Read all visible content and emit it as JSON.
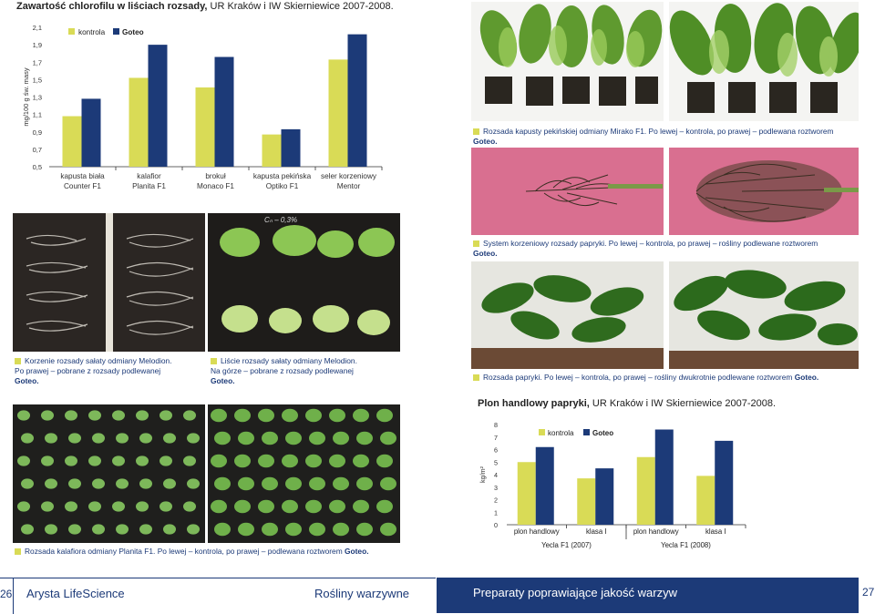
{
  "colors": {
    "kontrola": "#d9db56",
    "goteo": "#1c3a78",
    "accent_sq": "#d9db56",
    "footer_blue": "#1c3a78"
  },
  "chart1": {
    "title_bold": "Zawartość chlorofilu w liściach rozsady,",
    "title_rest": " UR Kraków i IW Skierniewice 2007-2008.",
    "chart_data": {
      "type": "bar",
      "ylabel": "mg/100 g św. masy",
      "ylim": [
        0.5,
        2.1
      ],
      "yticks": [
        "2,1",
        "1,9",
        "1,7",
        "1,5",
        "1,3",
        "1,1",
        "0,9",
        "0,7",
        "0,5"
      ],
      "ytick_values": [
        2.1,
        1.9,
        1.7,
        1.5,
        1.3,
        1.1,
        0.9,
        0.7,
        0.5
      ],
      "categories": [
        [
          "kapusta biała",
          "Counter F1"
        ],
        [
          "kalafior",
          "Planita F1"
        ],
        [
          "brokuł",
          "Monaco F1"
        ],
        [
          "kapusta pekińska",
          "Optiko F1"
        ],
        [
          "seler korzeniowy",
          "Mentor"
        ]
      ],
      "series": [
        {
          "name": "kontrola",
          "values": [
            1.08,
            1.52,
            1.41,
            0.87,
            1.73
          ]
        },
        {
          "name": "Goteo",
          "values": [
            1.28,
            1.9,
            1.76,
            0.93,
            2.02
          ]
        }
      ],
      "legend_position": "top-left"
    }
  },
  "chart2": {
    "title_bold": "Plon handlowy papryki,",
    "title_rest": " UR Kraków i IW Skierniewice 2007-2008.",
    "chart_data": {
      "type": "bar",
      "ylabel": "kg/m²",
      "ylim": [
        0,
        8
      ],
      "yticks": [
        "8",
        "7",
        "6",
        "5",
        "4",
        "3",
        "2",
        "1",
        "0"
      ],
      "ytick_values": [
        8,
        7,
        6,
        5,
        4,
        3,
        2,
        1,
        0
      ],
      "categories": [
        "plon handlowy",
        "klasa I",
        "plon handlowy",
        "klasa I"
      ],
      "groups": [
        "Yecla F1 (2007)",
        "Yecla F1 (2008)"
      ],
      "series": [
        {
          "name": "kontrola",
          "values": [
            5.0,
            3.7,
            5.4,
            3.9
          ]
        },
        {
          "name": "Goteo",
          "values": [
            6.2,
            4.5,
            7.6,
            6.7
          ]
        }
      ],
      "legend_position": "top-left"
    }
  },
  "captions": {
    "cap1a": "Rozsada kapusty pekińskiej odmiany Mirako F1. Po lewej – kontrola, po prawej – podlewana roztworem",
    "cap1b": "Goteo.",
    "cap2a": "System korzeniowy rozsady papryki. Po lewej – kontrola, po prawej – rośliny podlewane roztworem",
    "cap2b": "Goteo.",
    "cap3a": "Korzenie rozsady sałaty odmiany Melodion.",
    "cap3b": "Po prawej – pobrane z rozsady podlewanej",
    "cap3c": "Goteo.",
    "cap4a": "Liście rozsady sałaty odmiany Melodion.",
    "cap4b": "Na górze – pobrane z rozsady podlewanej",
    "cap4c": "Goteo.",
    "cap5a": "Rozsada papryki. Po lewej – kontrola, po prawej – rośliny dwukrotnie podlewane roztworem ",
    "cap5b": "Goteo.",
    "cap6a": "Rozsada kalafiora odmiany Planita F1. Po lewej – kontrola, po prawej – podlewana roztworem ",
    "cap6b": "Goteo.",
    "photo_label": "Cₙ – 0,3%"
  },
  "footer": {
    "page_left": "26",
    "brand": "Arysta LifeScience",
    "section_left": "Rośliny warzywne",
    "section_right": "Preparaty poprawiające jakość warzyw",
    "page_right": "27"
  }
}
